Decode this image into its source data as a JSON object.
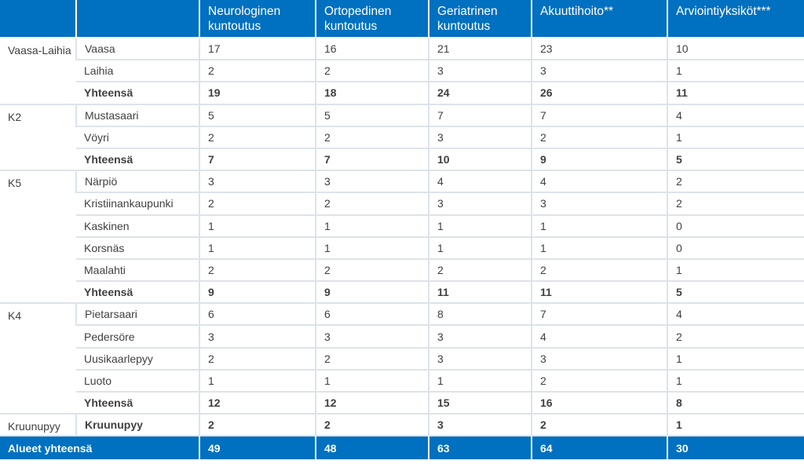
{
  "header": {
    "area_label": "",
    "municipality_label": "",
    "columns": [
      "Neurologinen kuntoutus",
      "Ortopedinen kuntoutus",
      "Geriatrinen kuntoutus",
      "Akuuttihoito**",
      "Arviointiyksiköt***"
    ]
  },
  "groups": {
    "vaasa_laihia": {
      "area": "Vaasa-Laihia",
      "rows": [
        {
          "name": "Vaasa",
          "values": [
            "17",
            "16",
            "21",
            "23",
            "10"
          ]
        },
        {
          "name": "Laihia",
          "values": [
            "2",
            "2",
            "3",
            "3",
            "1"
          ]
        },
        {
          "name": "Yhteensä",
          "values": [
            "19",
            "18",
            "24",
            "26",
            "11"
          ]
        }
      ]
    },
    "k2": {
      "area": "K2",
      "rows": [
        {
          "name": "Mustasaari",
          "values": [
            "5",
            "5",
            "7",
            "7",
            "4"
          ]
        },
        {
          "name": "Vöyri",
          "values": [
            "2",
            "2",
            "3",
            "2",
            "1"
          ]
        },
        {
          "name": "Yhteensä",
          "values": [
            "7",
            "7",
            "10",
            "9",
            "5"
          ]
        }
      ]
    },
    "k5": {
      "area": "K5",
      "rows": [
        {
          "name": "Närpiö",
          "values": [
            "3",
            "3",
            "4",
            "4",
            "2"
          ]
        },
        {
          "name": "Kristiinankaupunki",
          "values": [
            "2",
            "2",
            "3",
            "3",
            "2"
          ]
        },
        {
          "name": "Kaskinen",
          "values": [
            "1",
            "1",
            "1",
            "1",
            "0"
          ]
        },
        {
          "name": "Korsnäs",
          "values": [
            "1",
            "1",
            "1",
            "1",
            "0"
          ]
        },
        {
          "name": "Maalahti",
          "values": [
            "2",
            "2",
            "2",
            "2",
            "1"
          ]
        },
        {
          "name": "Yhteensä",
          "values": [
            "9",
            "9",
            "11",
            "11",
            "5"
          ]
        }
      ]
    },
    "k4": {
      "area": "K4",
      "rows": [
        {
          "name": "Pietarsaari",
          "values": [
            "6",
            "6",
            "8",
            "7",
            "4"
          ]
        },
        {
          "name": "Pedersöre",
          "values": [
            "3",
            "3",
            "3",
            "4",
            "2"
          ]
        },
        {
          "name": "Uusikaarlepyy",
          "values": [
            "2",
            "2",
            "3",
            "3",
            "1"
          ]
        },
        {
          "name": "Luoto",
          "values": [
            "1",
            "1",
            "1",
            "2",
            "1"
          ]
        },
        {
          "name": "Yhteensä",
          "values": [
            "12",
            "12",
            "15",
            "16",
            "8"
          ]
        }
      ]
    },
    "kruunupyy": {
      "area": "Kruunupyy",
      "rows": [
        {
          "name": "Kruunupyy",
          "values": [
            "2",
            "2",
            "3",
            "2",
            "1"
          ]
        }
      ]
    }
  },
  "grand_total": {
    "label": "Alueet yhteensä",
    "values": [
      "49",
      "48",
      "63",
      "64",
      "30"
    ]
  }
}
